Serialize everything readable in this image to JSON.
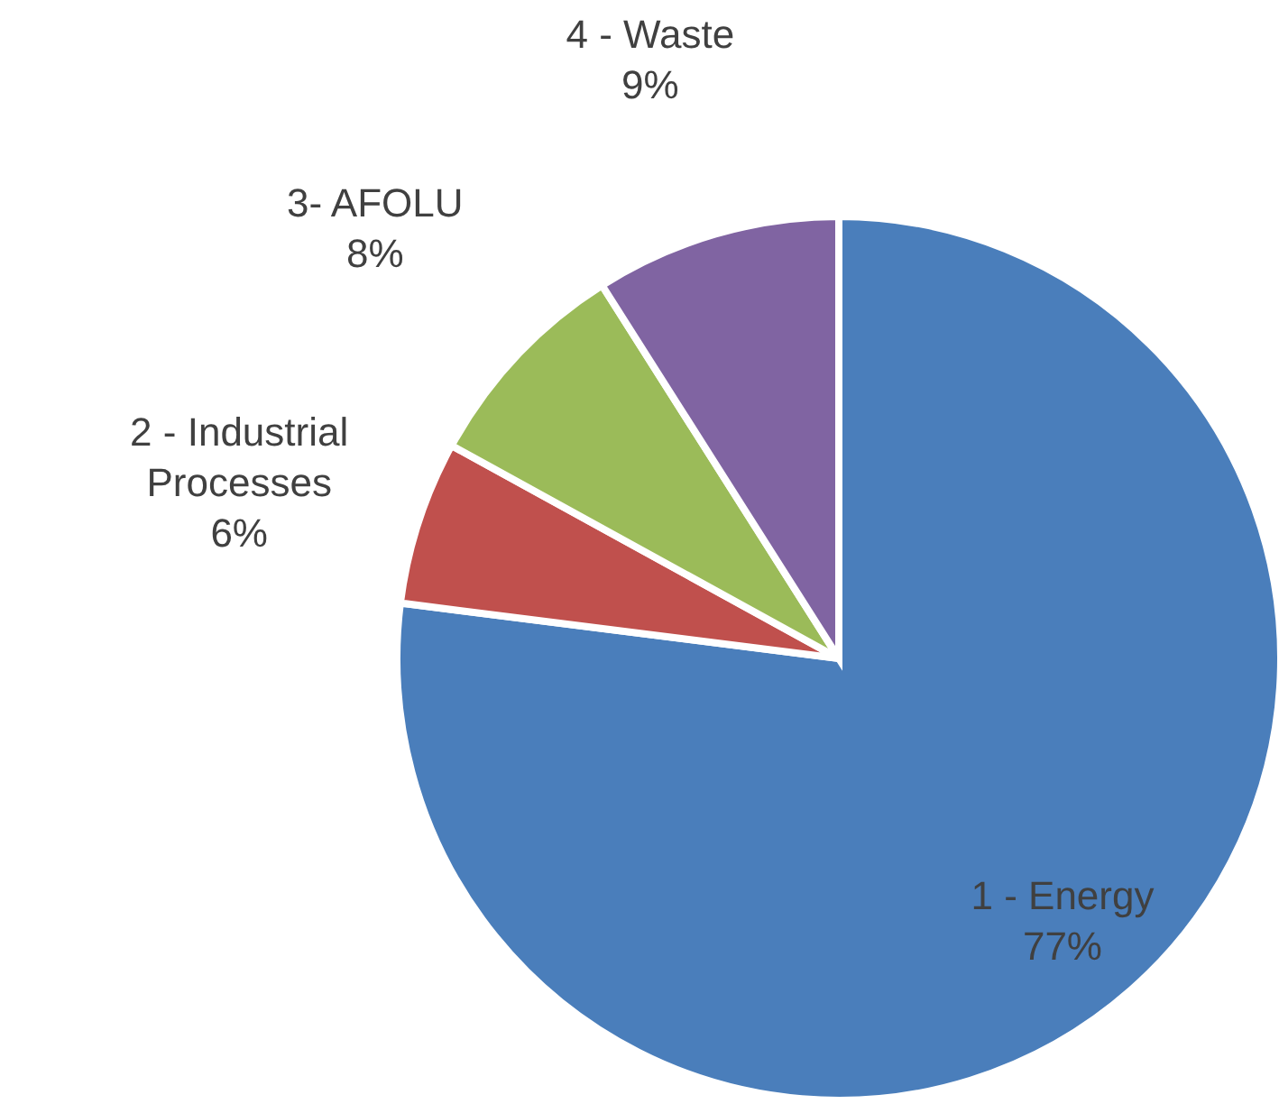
{
  "chart_data": {
    "type": "pie",
    "categories": [
      "1 - Energy",
      "2 - Industrial\nProcesses",
      "3- AFOLU",
      "4 - Waste"
    ],
    "values": [
      77,
      6,
      8,
      9
    ],
    "value_labels": [
      "77%",
      "6%",
      "8%",
      "9%"
    ],
    "colors": [
      "#4a7ebb",
      "#c0504d",
      "#9bbb59",
      "#8064a2"
    ]
  }
}
